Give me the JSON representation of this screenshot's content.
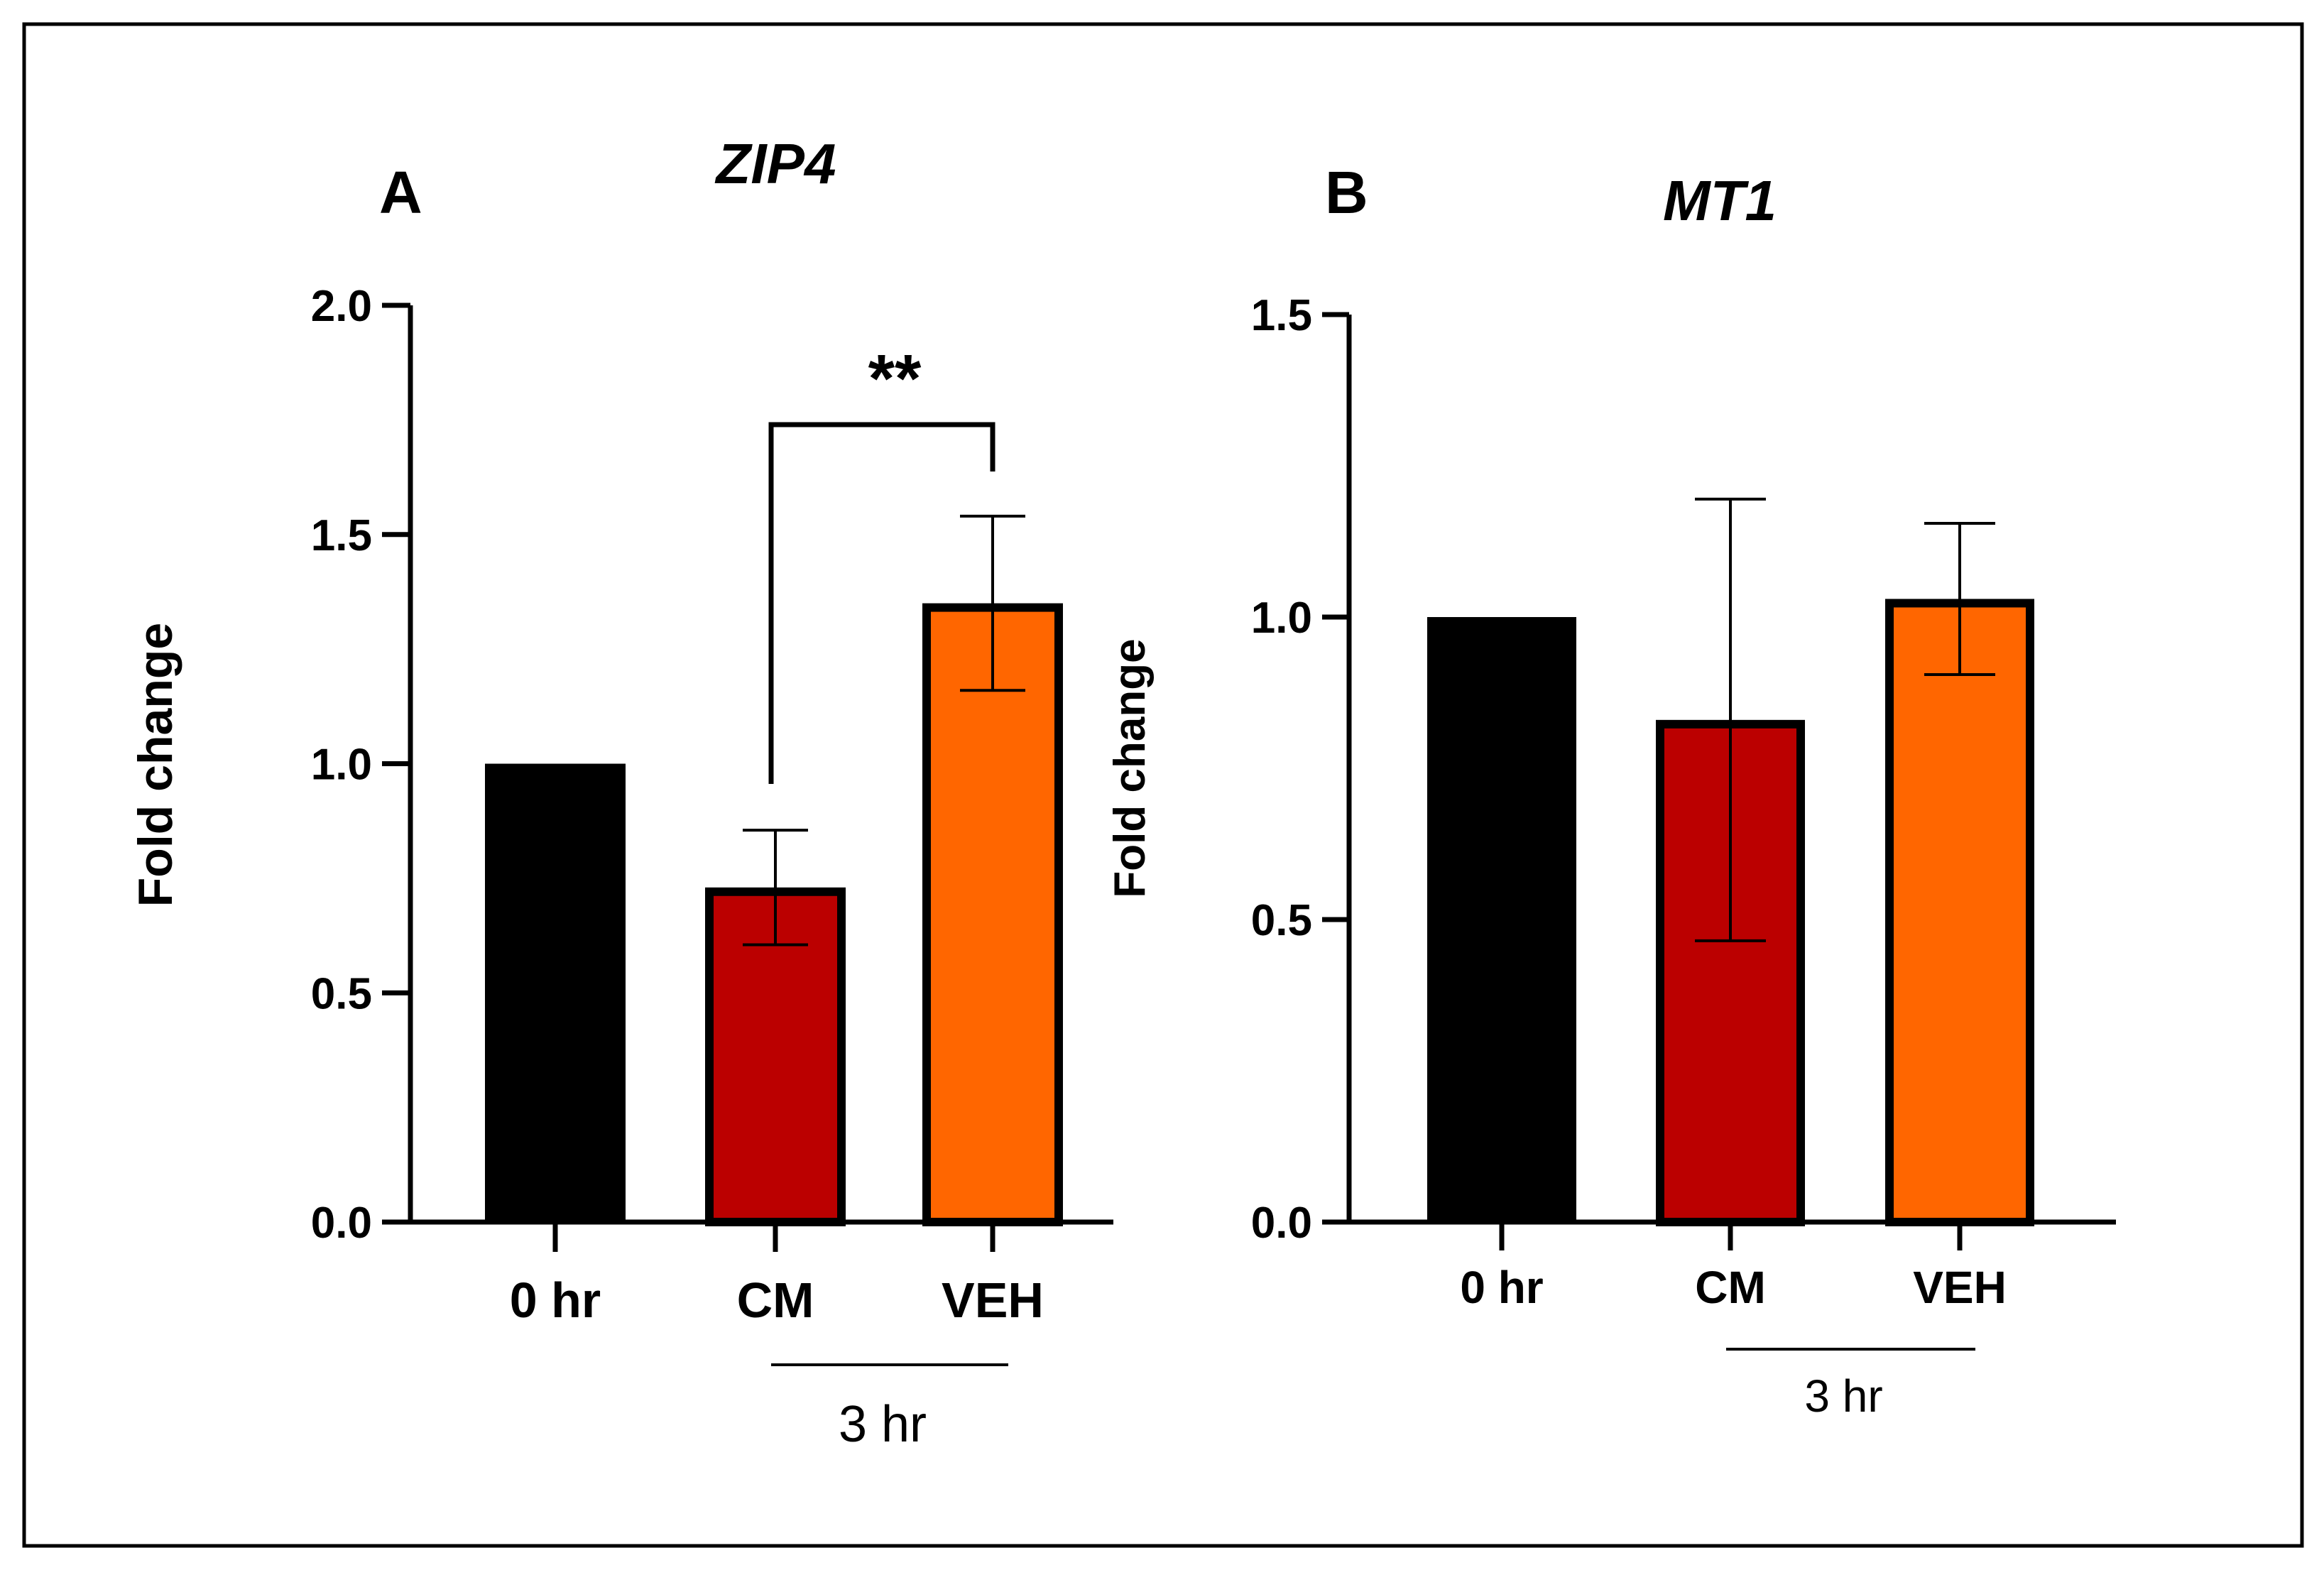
{
  "chart_data": [
    {
      "panel": "A",
      "type": "bar",
      "title": "ZIP4",
      "ylabel": "Fold change",
      "xlabel": "",
      "ylim": [
        0,
        2.0
      ],
      "yticks": [
        "0.0",
        "0.5",
        "1.0",
        "1.5",
        "2.0"
      ],
      "categories": [
        "0 hr",
        "CM",
        "VEH"
      ],
      "values": [
        1.0,
        0.73,
        1.35
      ],
      "errors": [
        0,
        0.125,
        0.19
      ],
      "colors": [
        "#000000",
        "#bb0000",
        "#ff6600"
      ],
      "group_label": "3 hr",
      "group_categories": [
        "CM",
        "VEH"
      ],
      "significance": {
        "from": "CM",
        "to": "VEH",
        "label": "**"
      },
      "grid": false
    },
    {
      "panel": "B",
      "type": "bar",
      "title": "MT1",
      "ylabel": "Fold change",
      "xlabel": "",
      "ylim": [
        0,
        1.5
      ],
      "yticks": [
        "0.0",
        "0.5",
        "1.0",
        "1.5"
      ],
      "categories": [
        "0 hr",
        "CM",
        "VEH"
      ],
      "values": [
        1.0,
        0.83,
        1.03
      ],
      "errors": [
        0,
        0.365,
        0.125
      ],
      "colors": [
        "#000000",
        "#bb0000",
        "#ff6600"
      ],
      "group_label": "3 hr",
      "group_categories": [
        "CM",
        "VEH"
      ],
      "grid": false
    }
  ]
}
